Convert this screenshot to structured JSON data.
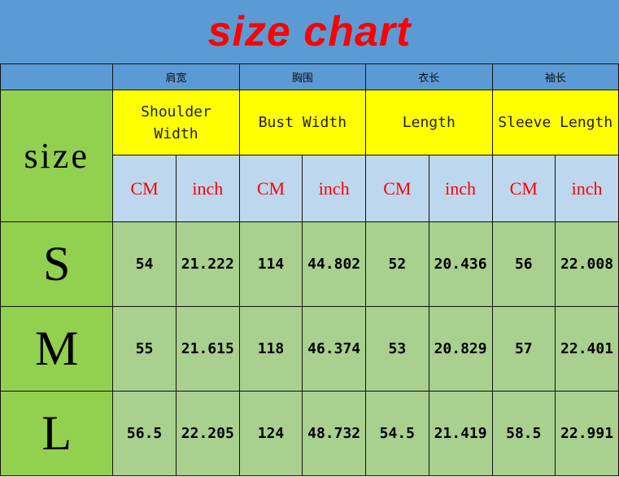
{
  "title": "size chart",
  "size_label": "size",
  "columns": [
    {
      "cn": "肩宽",
      "en": "Shoulder Width"
    },
    {
      "cn": "胸围",
      "en": "Bust Width"
    },
    {
      "cn": "衣长",
      "en": "Length"
    },
    {
      "cn": "袖长",
      "en": "Sleeve Length"
    }
  ],
  "units": [
    "CM",
    "inch"
  ],
  "rows": [
    {
      "size": "S",
      "values": [
        "54",
        "21.222",
        "114",
        "44.802",
        "52",
        "20.436",
        "56",
        "22.008"
      ]
    },
    {
      "size": "M",
      "values": [
        "55",
        "21.615",
        "118",
        "46.374",
        "53",
        "20.829",
        "57",
        "22.401"
      ]
    },
    {
      "size": "L",
      "values": [
        "56.5",
        "22.205",
        "124",
        "48.732",
        "54.5",
        "21.419",
        "58.5",
        "22.991"
      ]
    }
  ],
  "colors": {
    "header_blue": "#5b9bd5",
    "title_red": "#ff0000",
    "yellow": "#ffff00",
    "unit_blue": "#bdd7ee",
    "size_green": "#92d050",
    "cell_green": "#a9d08e"
  }
}
